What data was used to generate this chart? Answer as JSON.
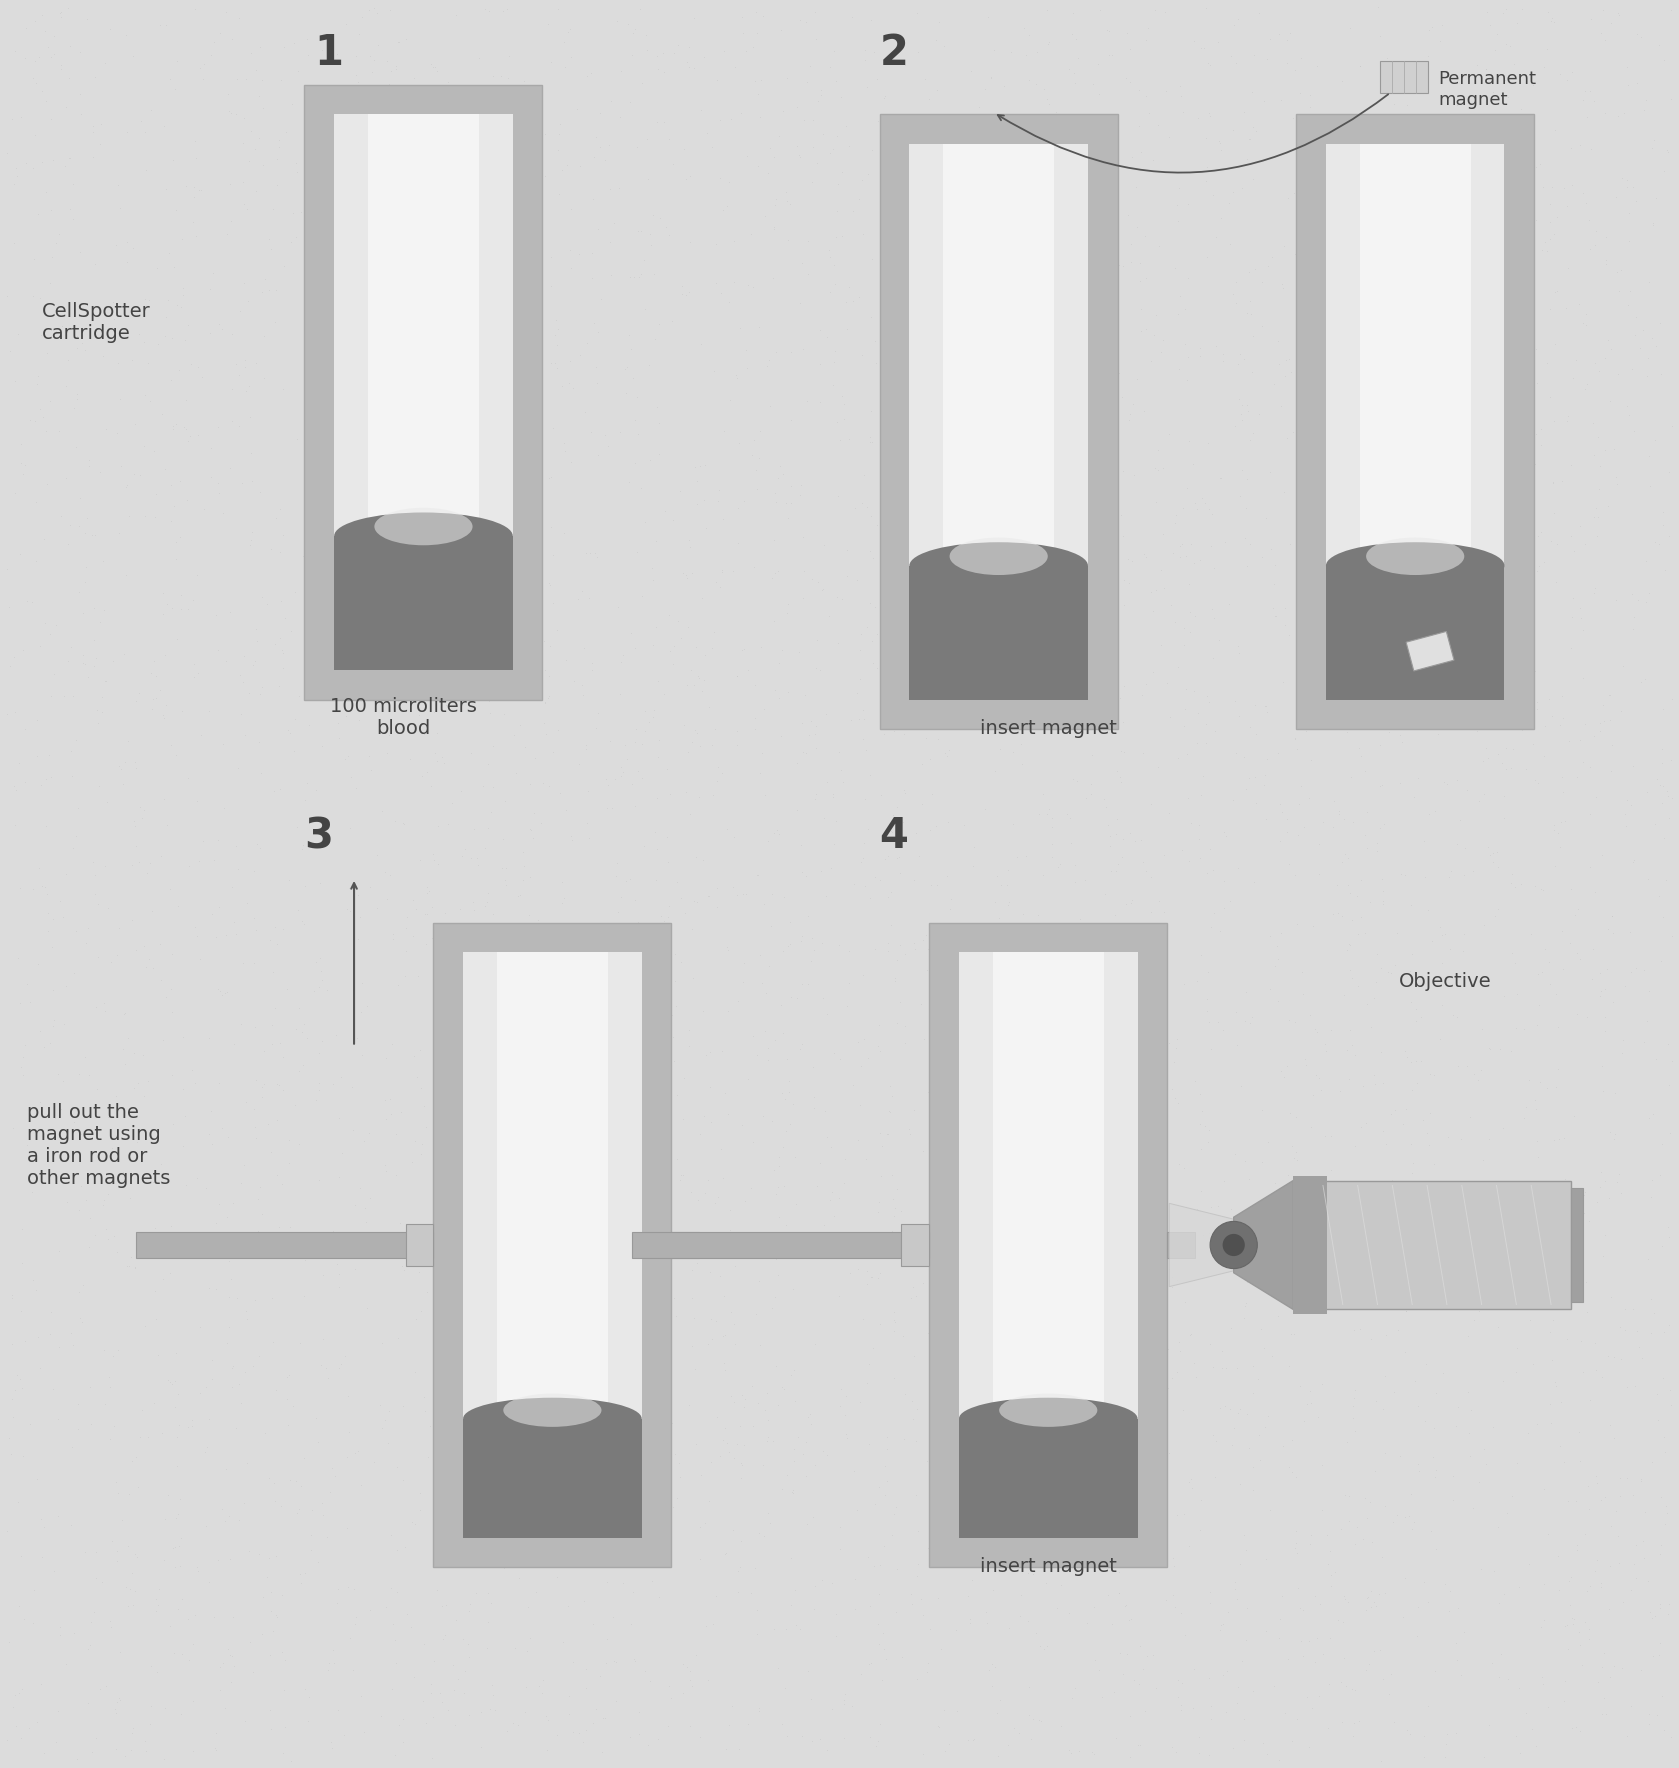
{
  "bg_color": "#dcdcdc",
  "frame_color": "#b8b8b8",
  "frame_edge": "#a8a8a8",
  "inner_bg_color": "#e8e8e8",
  "channel_color": "#f4f4f4",
  "blood_color": "#7a7a7a",
  "blood_dark_color": "#666666",
  "rod_color": "#b0b0b0",
  "rod_edge": "#999999",
  "nub_color": "#c8c8c8",
  "magnet_fill": "#d0d0d0",
  "magnet_edge": "#999999",
  "obj_body": "#c8c8c8",
  "obj_dark": "#a0a0a0",
  "obj_front": "#888888",
  "obj_highlight": "#e0e0e0",
  "text_color": "#444444",
  "arrow_color": "#555555",
  "title_1": "1",
  "title_2": "2",
  "title_3": "3",
  "title_4": "4",
  "label_cellspotter": "CellSpotter\ncartridge",
  "label_blood": "100 microliters\nblood",
  "label_insert2": "insert magnet",
  "label_perm": "Permanent\nmagnet",
  "label_pullout": "pull out the\nmagnet using\na iron rod or\nother magnets",
  "label_insert4": "insert magnet",
  "label_obj": "Objective",
  "fs_title": 30,
  "fs_label": 14,
  "fs_legend": 13
}
